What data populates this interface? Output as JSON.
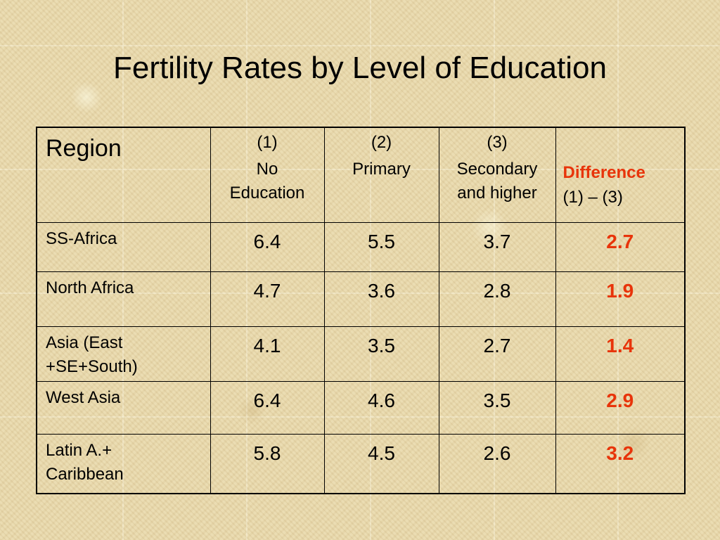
{
  "slide": {
    "title": "Fertility Rates by Level of Education"
  },
  "table": {
    "header": {
      "region": "Region",
      "c1_num": "(1)",
      "c1_label_line1": "No",
      "c1_label_line2": "Education",
      "c2_num": "(2)",
      "c2_label": "Primary",
      "c3_num": "(3)",
      "c3_label_line1": "Secondary",
      "c3_label_line2": "and higher",
      "diff_label": "Difference",
      "diff_formula": "(1) – (3)"
    },
    "rows": [
      {
        "region_line1": "SS-Africa",
        "region_line2": "",
        "no_education": "6.4",
        "primary": "5.5",
        "secondary": "3.7",
        "difference": "2.7"
      },
      {
        "region_line1": "North Africa",
        "region_line2": "",
        "no_education": "4.7",
        "primary": "3.6",
        "secondary": "2.8",
        "difference": "1.9"
      },
      {
        "region_line1": "Asia (East",
        "region_line2": "+SE+South)",
        "no_education": "4.1",
        "primary": "3.5",
        "secondary": "2.7",
        "difference": "1.4"
      },
      {
        "region_line1": "West Asia",
        "region_line2": "",
        "no_education": "6.4",
        "primary": "4.6",
        "secondary": "3.5",
        "difference": "2.9"
      },
      {
        "region_line1": "Latin A.+",
        "region_line2": "Caribbean",
        "no_education": "5.8",
        "primary": "4.5",
        "secondary": "2.6",
        "difference": "3.2"
      }
    ]
  },
  "colors": {
    "accent_difference": "#e8340a",
    "background": "#e9d9ad",
    "text": "#000000"
  }
}
